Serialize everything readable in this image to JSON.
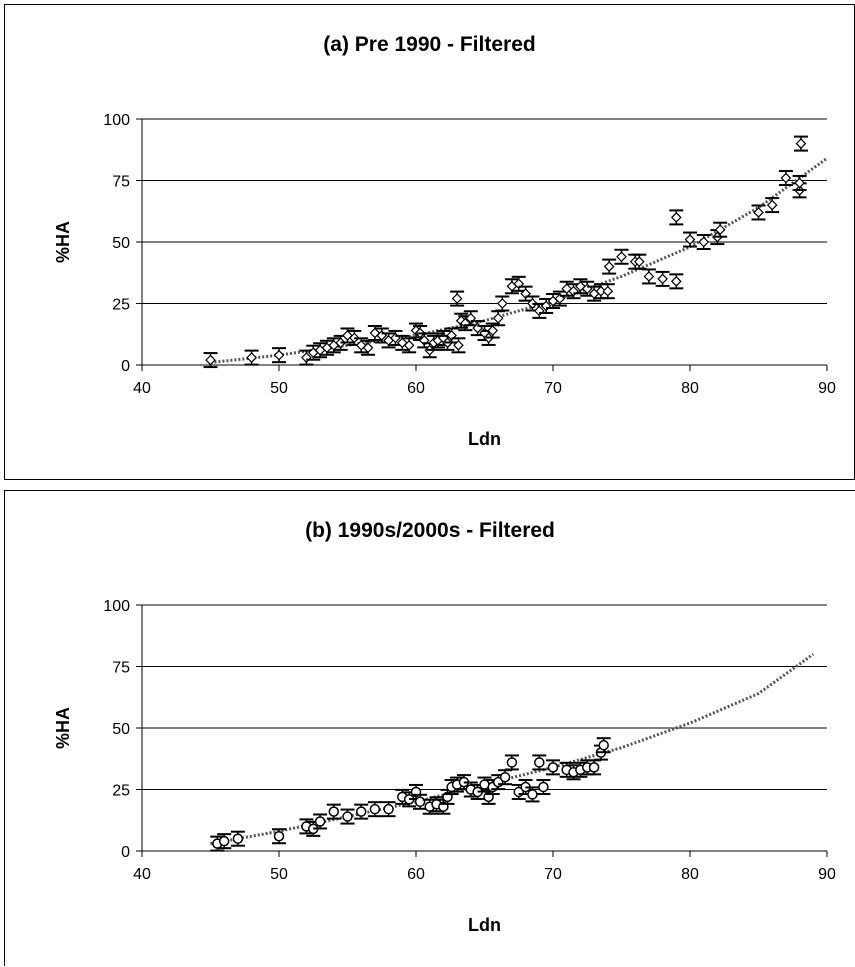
{
  "chart_data": [
    {
      "type": "scatter",
      "title": "(a) Pre 1990 - Filtered",
      "xlabel": "Ldn",
      "ylabel": "%HA",
      "xlim": [
        40,
        90
      ],
      "ylim": [
        0,
        100
      ],
      "xticks": [
        "40",
        "50",
        "60",
        "70",
        "80",
        "90"
      ],
      "yticks": [
        "0",
        "25",
        "50",
        "75",
        "100"
      ],
      "grid": "horizontal",
      "marker": "diamond",
      "series": [
        {
          "points": [
            {
              "x": 45,
              "y": 2
            },
            {
              "x": 48,
              "y": 3
            },
            {
              "x": 50,
              "y": 4
            },
            {
              "x": 52,
              "y": 3
            },
            {
              "x": 52.5,
              "y": 5
            },
            {
              "x": 53,
              "y": 6
            },
            {
              "x": 53.5,
              "y": 7
            },
            {
              "x": 54,
              "y": 8
            },
            {
              "x": 54.5,
              "y": 9
            },
            {
              "x": 55,
              "y": 12
            },
            {
              "x": 55.5,
              "y": 11
            },
            {
              "x": 56,
              "y": 8
            },
            {
              "x": 56.5,
              "y": 7
            },
            {
              "x": 57,
              "y": 13
            },
            {
              "x": 57.5,
              "y": 12
            },
            {
              "x": 58,
              "y": 10
            },
            {
              "x": 58.5,
              "y": 11
            },
            {
              "x": 59,
              "y": 9
            },
            {
              "x": 59.5,
              "y": 8
            },
            {
              "x": 60,
              "y": 14
            },
            {
              "x": 60.3,
              "y": 13
            },
            {
              "x": 60.6,
              "y": 10
            },
            {
              "x": 61,
              "y": 6
            },
            {
              "x": 61.3,
              "y": 9
            },
            {
              "x": 61.6,
              "y": 10
            },
            {
              "x": 62,
              "y": 11
            },
            {
              "x": 62.3,
              "y": 9
            },
            {
              "x": 62.6,
              "y": 12
            },
            {
              "x": 63,
              "y": 27
            },
            {
              "x": 63.1,
              "y": 8
            },
            {
              "x": 63.3,
              "y": 18
            },
            {
              "x": 63.6,
              "y": 17
            },
            {
              "x": 64,
              "y": 19
            },
            {
              "x": 64.5,
              "y": 15
            },
            {
              "x": 65,
              "y": 13
            },
            {
              "x": 65.3,
              "y": 11
            },
            {
              "x": 65.6,
              "y": 14
            },
            {
              "x": 66,
              "y": 19
            },
            {
              "x": 66.3,
              "y": 25
            },
            {
              "x": 67,
              "y": 32
            },
            {
              "x": 67.5,
              "y": 33
            },
            {
              "x": 68,
              "y": 29
            },
            {
              "x": 68.5,
              "y": 25
            },
            {
              "x": 69,
              "y": 22
            },
            {
              "x": 69.5,
              "y": 24
            },
            {
              "x": 70,
              "y": 26
            },
            {
              "x": 70.5,
              "y": 27
            },
            {
              "x": 71,
              "y": 31
            },
            {
              "x": 71.5,
              "y": 30
            },
            {
              "x": 72,
              "y": 32
            },
            {
              "x": 72.5,
              "y": 31
            },
            {
              "x": 73,
              "y": 29
            },
            {
              "x": 73.5,
              "y": 30
            },
            {
              "x": 74,
              "y": 30
            },
            {
              "x": 74.1,
              "y": 40
            },
            {
              "x": 75,
              "y": 44
            },
            {
              "x": 76,
              "y": 42
            },
            {
              "x": 76.3,
              "y": 42
            },
            {
              "x": 77,
              "y": 36
            },
            {
              "x": 78,
              "y": 35
            },
            {
              "x": 79,
              "y": 34
            },
            {
              "x": 79,
              "y": 60
            },
            {
              "x": 80,
              "y": 51
            },
            {
              "x": 81,
              "y": 50
            },
            {
              "x": 82,
              "y": 52
            },
            {
              "x": 82.2,
              "y": 55
            },
            {
              "x": 85,
              "y": 62
            },
            {
              "x": 86,
              "y": 65
            },
            {
              "x": 87,
              "y": 76
            },
            {
              "x": 88,
              "y": 71
            },
            {
              "x": 88,
              "y": 74
            },
            {
              "x": 88.1,
              "y": 90
            }
          ]
        }
      ],
      "trendline": [
        {
          "x": 45,
          "y": 1
        },
        {
          "x": 50,
          "y": 4
        },
        {
          "x": 55,
          "y": 8
        },
        {
          "x": 60,
          "y": 12
        },
        {
          "x": 65,
          "y": 18
        },
        {
          "x": 70,
          "y": 26
        },
        {
          "x": 75,
          "y": 36
        },
        {
          "x": 80,
          "y": 48
        },
        {
          "x": 85,
          "y": 64
        },
        {
          "x": 90,
          "y": 84
        }
      ]
    },
    {
      "type": "scatter",
      "title": "(b) 1990s/2000s - Filtered",
      "xlabel": "Ldn",
      "ylabel": "%HA",
      "xlim": [
        40,
        90
      ],
      "ylim": [
        0,
        100
      ],
      "xticks": [
        "40",
        "50",
        "60",
        "70",
        "80",
        "90"
      ],
      "yticks": [
        "0",
        "25",
        "50",
        "75",
        "100"
      ],
      "grid": "horizontal",
      "marker": "circle",
      "series": [
        {
          "points": [
            {
              "x": 45.5,
              "y": 3
            },
            {
              "x": 46,
              "y": 4
            },
            {
              "x": 47,
              "y": 5
            },
            {
              "x": 50,
              "y": 6
            },
            {
              "x": 52,
              "y": 10
            },
            {
              "x": 52.5,
              "y": 9
            },
            {
              "x": 53,
              "y": 12
            },
            {
              "x": 54,
              "y": 16
            },
            {
              "x": 55,
              "y": 14
            },
            {
              "x": 56,
              "y": 16
            },
            {
              "x": 57,
              "y": 17
            },
            {
              "x": 58,
              "y": 17
            },
            {
              "x": 59,
              "y": 22
            },
            {
              "x": 59.5,
              "y": 21
            },
            {
              "x": 60,
              "y": 24
            },
            {
              "x": 60.3,
              "y": 20
            },
            {
              "x": 61,
              "y": 18
            },
            {
              "x": 61.5,
              "y": 19
            },
            {
              "x": 62,
              "y": 18
            },
            {
              "x": 62.3,
              "y": 22
            },
            {
              "x": 62.6,
              "y": 26
            },
            {
              "x": 63,
              "y": 27
            },
            {
              "x": 63.5,
              "y": 28
            },
            {
              "x": 64,
              "y": 25
            },
            {
              "x": 64.5,
              "y": 24
            },
            {
              "x": 65,
              "y": 27
            },
            {
              "x": 65.3,
              "y": 22
            },
            {
              "x": 65.6,
              "y": 26
            },
            {
              "x": 66,
              "y": 28
            },
            {
              "x": 66.5,
              "y": 30
            },
            {
              "x": 67,
              "y": 36
            },
            {
              "x": 67.5,
              "y": 24
            },
            {
              "x": 68,
              "y": 26
            },
            {
              "x": 68.5,
              "y": 23
            },
            {
              "x": 69,
              "y": 36
            },
            {
              "x": 69.3,
              "y": 26
            },
            {
              "x": 70,
              "y": 34
            },
            {
              "x": 71,
              "y": 33
            },
            {
              "x": 71.5,
              "y": 32
            },
            {
              "x": 72,
              "y": 33
            },
            {
              "x": 72.5,
              "y": 34
            },
            {
              "x": 73,
              "y": 34
            },
            {
              "x": 73.5,
              "y": 40
            },
            {
              "x": 73.7,
              "y": 43
            }
          ]
        }
      ],
      "trendline": [
        {
          "x": 45,
          "y": 3
        },
        {
          "x": 50,
          "y": 8
        },
        {
          "x": 55,
          "y": 14
        },
        {
          "x": 60,
          "y": 20
        },
        {
          "x": 65,
          "y": 27
        },
        {
          "x": 70,
          "y": 34
        },
        {
          "x": 75,
          "y": 42
        },
        {
          "x": 80,
          "y": 52
        },
        {
          "x": 85,
          "y": 64
        },
        {
          "x": 89,
          "y": 80
        }
      ]
    }
  ]
}
